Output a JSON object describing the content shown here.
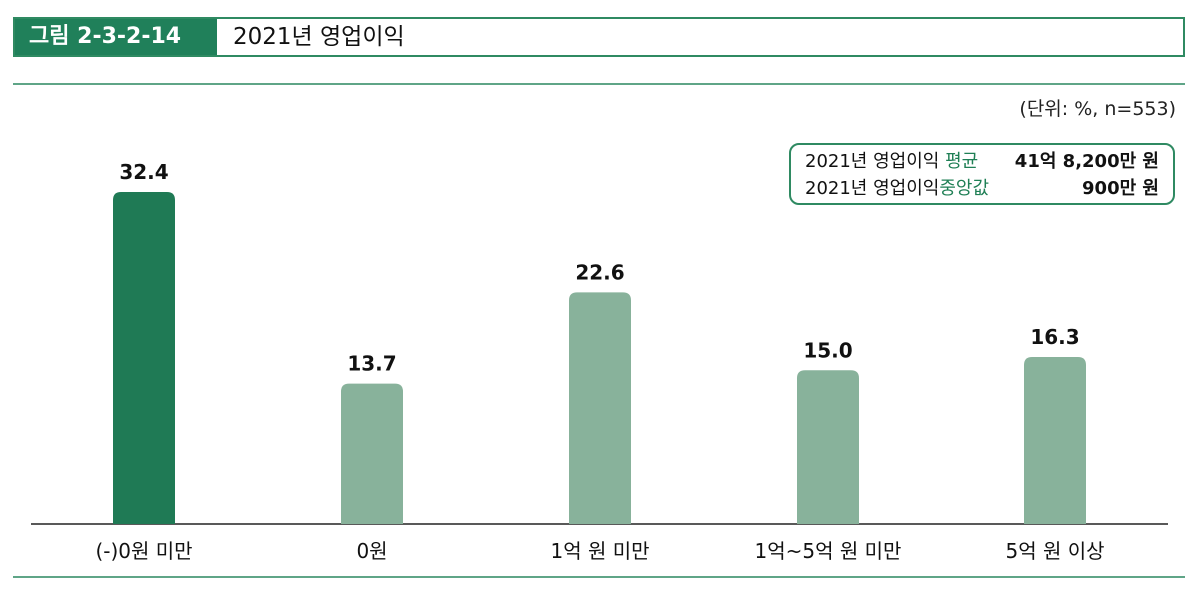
{
  "header": {
    "figure_label": "그림 2-3-2-14",
    "title": "2021년 영업이익"
  },
  "unit_note": "(단위: %, n=553)",
  "stats": {
    "rows": [
      {
        "prefix": "2021년 영업이익",
        "highlight": "평균",
        "value": "41억 8,200만 원"
      },
      {
        "prefix": "2021년 영업이익",
        "highlight": "중앙값",
        "value": "900만 원"
      }
    ]
  },
  "colors": {
    "accent": "#20805a",
    "bar_highlight": "#1f7a55",
    "bar_normal": "#88b29b",
    "border": "#2f8a62"
  },
  "chart_data": {
    "type": "bar",
    "categories": [
      "(-)0원 미만",
      "0원",
      "1억 원 미만",
      "1억~5억 원 미만",
      "5억 원 이상"
    ],
    "values": [
      32.4,
      13.7,
      22.6,
      15.0,
      16.3
    ],
    "value_labels": [
      "32.4",
      "13.7",
      "22.6",
      "15.0",
      "16.3"
    ],
    "highlight_index": 0,
    "ylim": [
      0,
      32.4
    ],
    "grid": false,
    "title": "",
    "xlabel": "",
    "ylabel": ""
  }
}
